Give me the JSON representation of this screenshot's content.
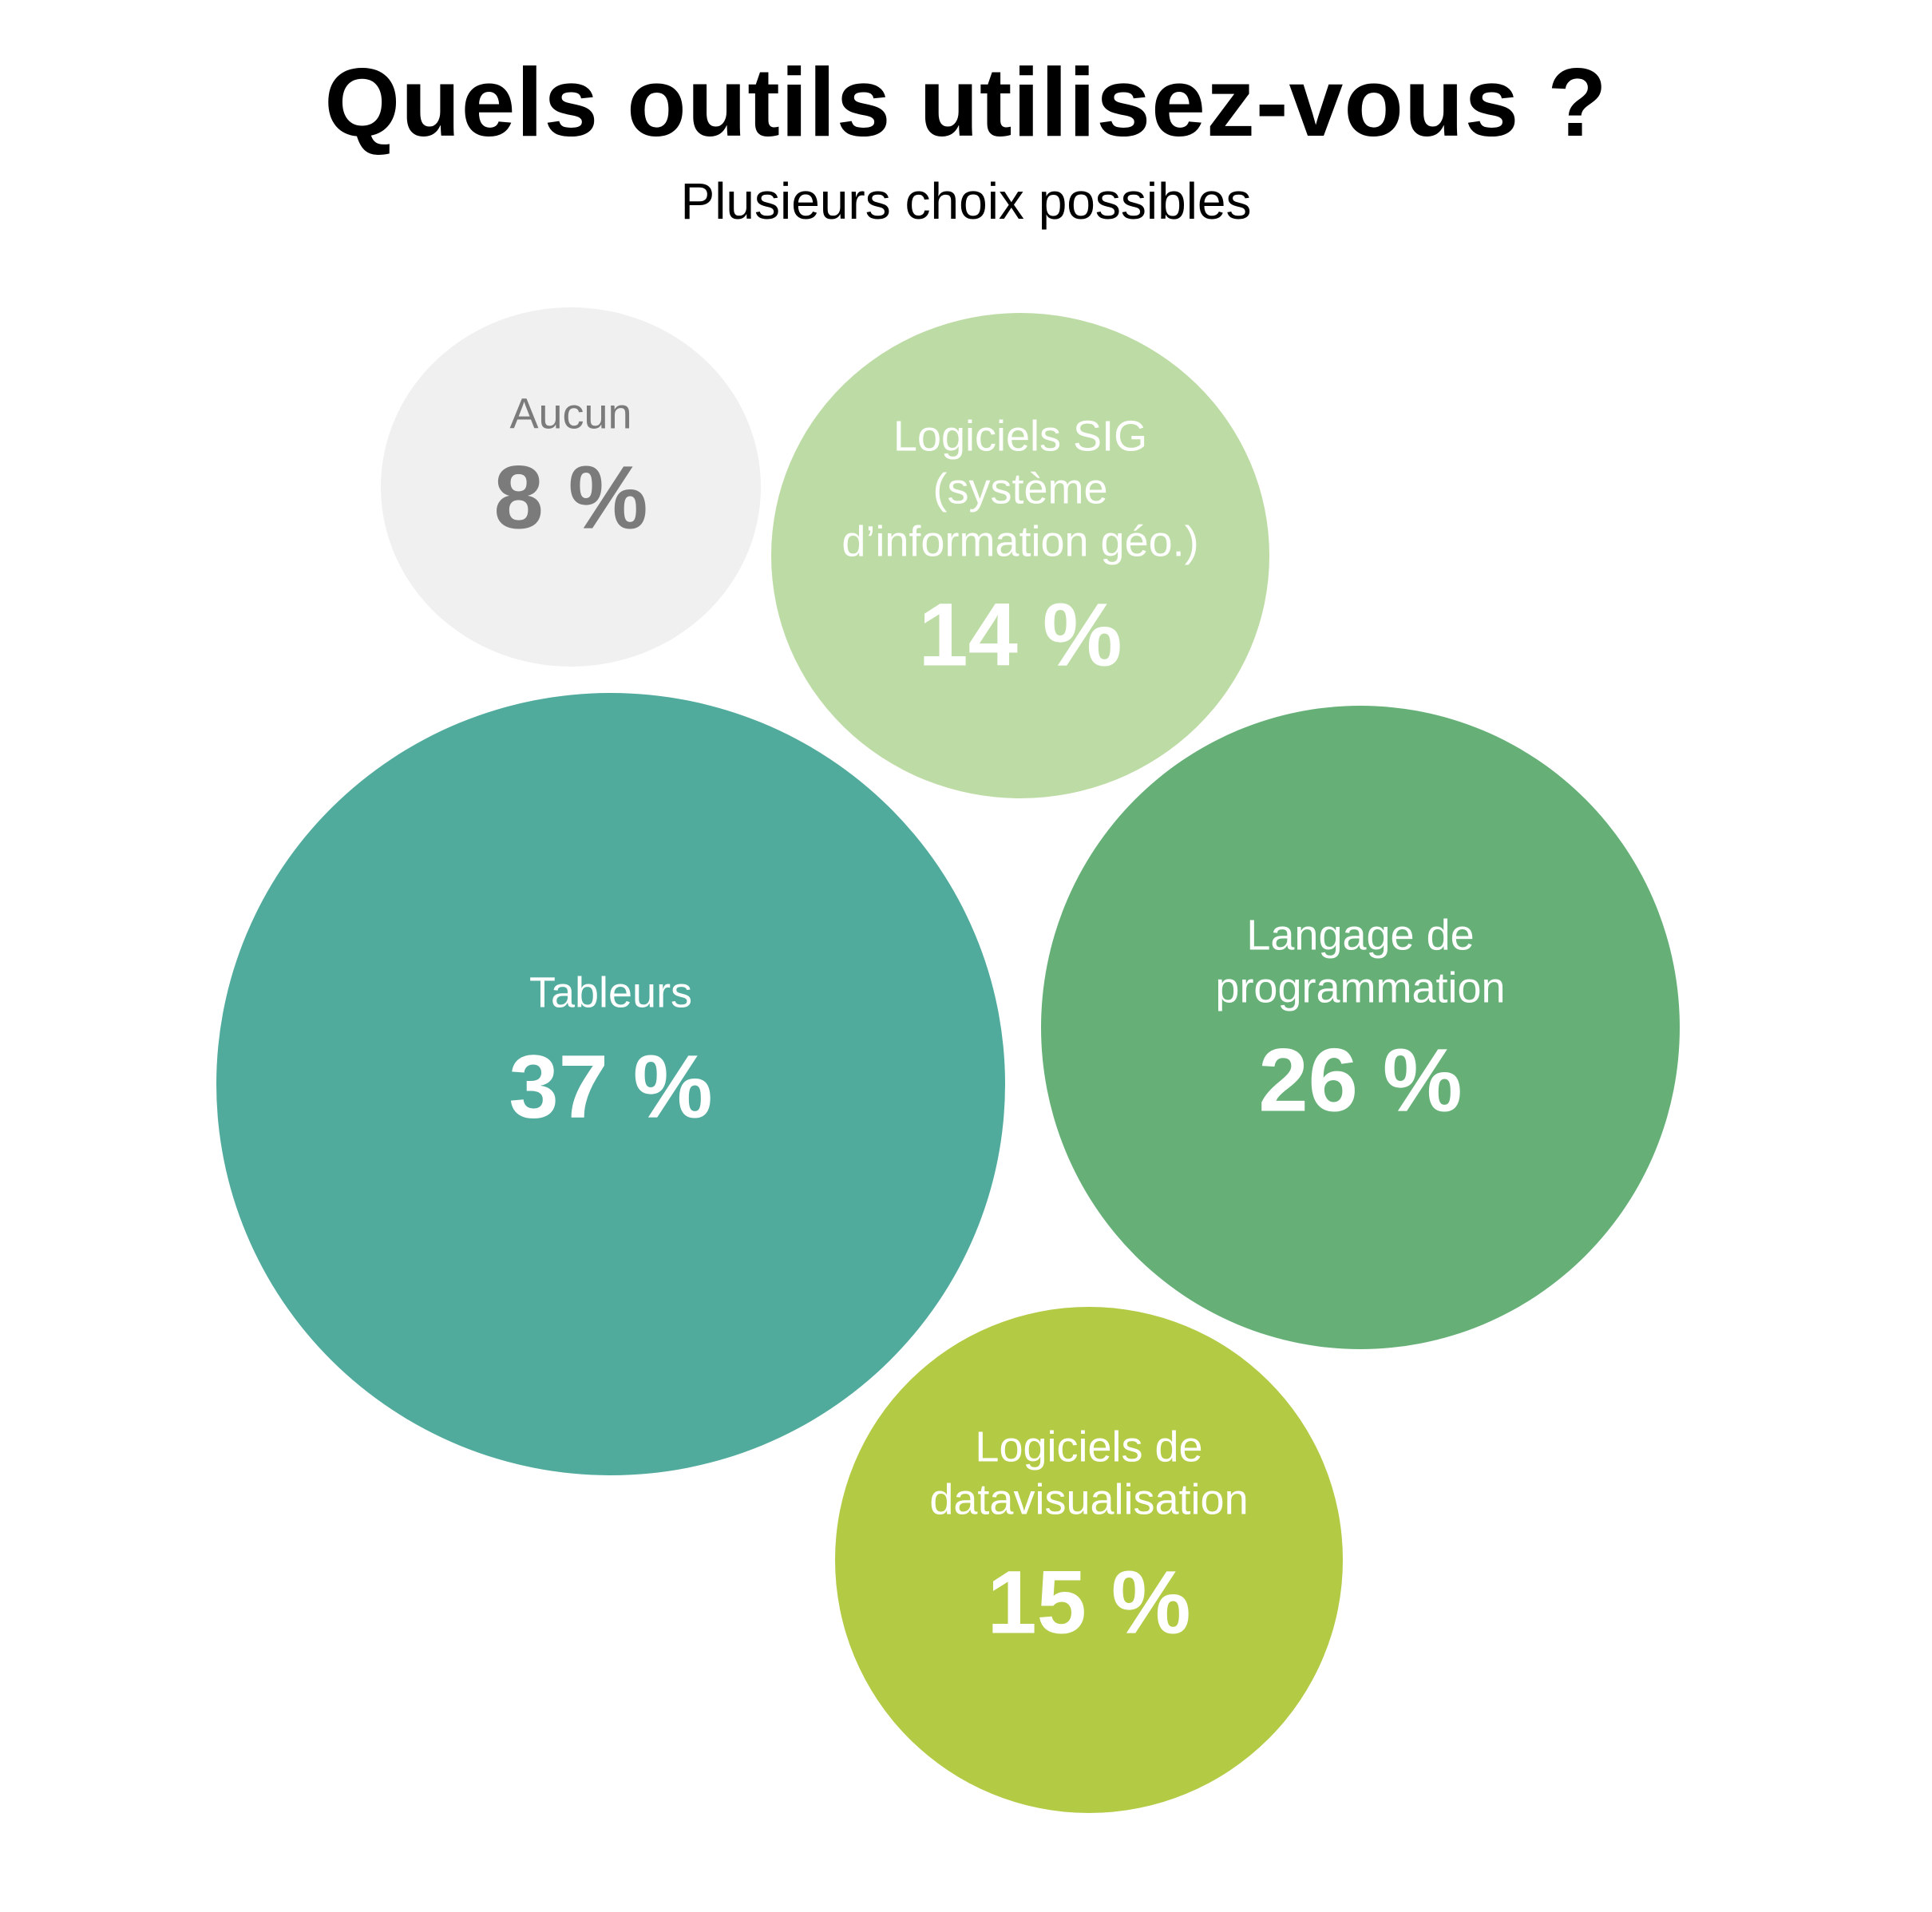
{
  "title": "Quels outils utilisez-vous ?",
  "subtitle": "Plusieurs choix possibles",
  "chart_data": {
    "type": "bubble",
    "unit": "%",
    "series": [
      {
        "id": "aucun",
        "name": "Aucun",
        "label_lines": [
          "Aucun"
        ],
        "value": 8,
        "value_text": "8 %",
        "color": "#f0f0f0",
        "text_color": "#7b7b7b"
      },
      {
        "id": "sig",
        "name": "Logiciels SIG (système d’information géo.)",
        "label_lines": [
          "Logiciels SIG",
          "(système",
          "d’information géo.)"
        ],
        "value": 14,
        "value_text": "14 %",
        "color": "#bddba4",
        "text_color": "#ffffff"
      },
      {
        "id": "tableurs",
        "name": "Tableurs",
        "label_lines": [
          "Tableurs"
        ],
        "value": 37,
        "value_text": "37 %",
        "color": "#51ab9d",
        "text_color": "#ffffff"
      },
      {
        "id": "programmation",
        "name": "Langage de programmation",
        "label_lines": [
          "Langage de",
          "programmation"
        ],
        "value": 26,
        "value_text": "26 %",
        "color": "#66b078",
        "text_color": "#ffffff"
      },
      {
        "id": "dataviz",
        "name": "Logiciels de datavisualisation",
        "label_lines": [
          "Logiciels de",
          "datavisualisation"
        ],
        "value": 15,
        "value_text": "15 %",
        "color": "#b2ca44",
        "text_color": "#ffffff"
      }
    ]
  }
}
